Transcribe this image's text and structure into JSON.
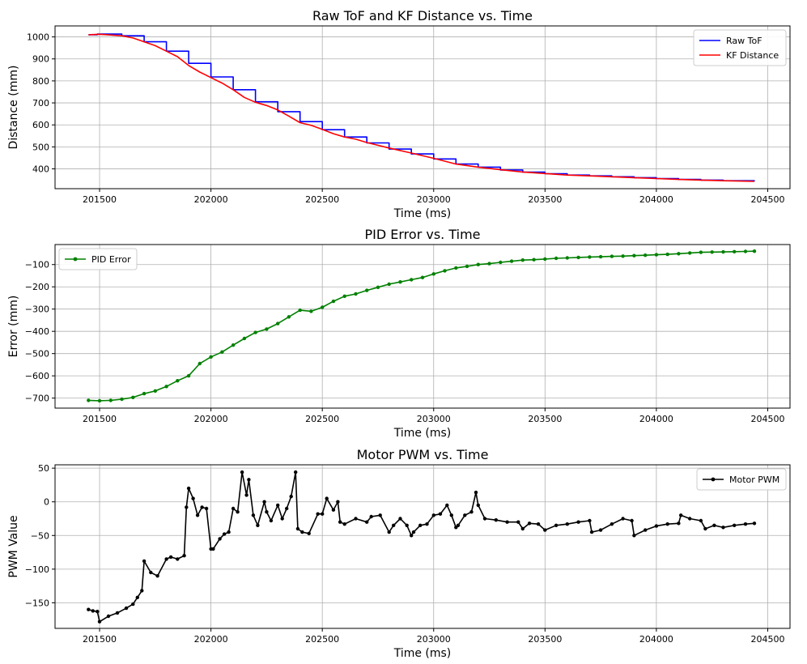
{
  "chart_data": [
    {
      "type": "line",
      "title": "Raw ToF and KF Distance vs. Time",
      "xlabel": "Time (ms)",
      "ylabel": "Distance (mm)",
      "xlim": [
        201300,
        204600
      ],
      "ylim": [
        310,
        1050
      ],
      "xticks": [
        201500,
        202000,
        202500,
        203000,
        203500,
        204000,
        204500
      ],
      "yticks": [
        400,
        500,
        600,
        700,
        800,
        900,
        1000
      ],
      "grid": true,
      "legend": "top-right",
      "series": [
        {
          "name": "Raw ToF",
          "color": "#0000ff",
          "style": "step",
          "marker": false,
          "x": [
            201450,
            201490,
            201600,
            201700,
            201800,
            201900,
            202000,
            202100,
            202200,
            202300,
            202400,
            202500,
            202600,
            202700,
            202800,
            202900,
            203000,
            203100,
            203200,
            203300,
            203400,
            203500,
            203600,
            203700,
            203800,
            203900,
            204000,
            204100,
            204200,
            204300,
            204440
          ],
          "y": [
            1010,
            1013,
            1005,
            978,
            935,
            880,
            818,
            760,
            705,
            660,
            615,
            578,
            545,
            518,
            490,
            468,
            445,
            422,
            408,
            395,
            385,
            378,
            372,
            368,
            364,
            360,
            356,
            352,
            349,
            346,
            344
          ]
        },
        {
          "name": "KF Distance",
          "color": "#ff0000",
          "style": "line",
          "marker": false,
          "x": [
            201450,
            201500,
            201600,
            201650,
            201700,
            201750,
            201800,
            201850,
            201900,
            201950,
            202000,
            202050,
            202100,
            202150,
            202200,
            202250,
            202300,
            202350,
            202400,
            202450,
            202500,
            202550,
            202600,
            202650,
            202700,
            202800,
            202900,
            203000,
            203100,
            203200,
            203300,
            203400,
            203500,
            203600,
            203700,
            203800,
            203900,
            204000,
            204100,
            204200,
            204300,
            204440
          ],
          "y": [
            1010,
            1012,
            1005,
            995,
            978,
            960,
            935,
            910,
            870,
            840,
            815,
            790,
            760,
            725,
            703,
            688,
            668,
            640,
            610,
            598,
            580,
            560,
            545,
            535,
            520,
            495,
            472,
            448,
            422,
            408,
            396,
            386,
            379,
            372,
            368,
            364,
            360,
            356,
            352,
            349,
            346,
            343
          ]
        }
      ]
    },
    {
      "type": "line",
      "title": "PID Error vs. Time",
      "xlabel": "Time (ms)",
      "ylabel": "Error (mm)",
      "xlim": [
        201300,
        204600
      ],
      "ylim": [
        -745,
        -10
      ],
      "xticks": [
        201500,
        202000,
        202500,
        203000,
        203500,
        204000,
        204500
      ],
      "yticks": [
        -700,
        -600,
        -500,
        -400,
        -300,
        -200,
        -100
      ],
      "grid": true,
      "legend": "top-left",
      "series": [
        {
          "name": "PID Error",
          "color": "#008000",
          "style": "line",
          "marker": true,
          "x": [
            201450,
            201500,
            201550,
            201600,
            201650,
            201700,
            201750,
            201800,
            201850,
            201900,
            201950,
            202000,
            202050,
            202100,
            202150,
            202200,
            202250,
            202300,
            202350,
            202400,
            202450,
            202500,
            202550,
            202600,
            202650,
            202700,
            202750,
            202800,
            202850,
            202900,
            202950,
            203000,
            203050,
            203100,
            203150,
            203200,
            203250,
            203300,
            203350,
            203400,
            203450,
            203500,
            203550,
            203600,
            203650,
            203700,
            203750,
            203800,
            203850,
            203900,
            203950,
            204000,
            204050,
            204100,
            204150,
            204200,
            204250,
            204300,
            204350,
            204400,
            204440
          ],
          "y": [
            -710,
            -712,
            -710,
            -705,
            -697,
            -680,
            -668,
            -648,
            -622,
            -600,
            -545,
            -515,
            -493,
            -462,
            -432,
            -405,
            -390,
            -365,
            -335,
            -305,
            -310,
            -292,
            -265,
            -242,
            -232,
            -216,
            -202,
            -188,
            -178,
            -168,
            -158,
            -142,
            -128,
            -115,
            -108,
            -100,
            -96,
            -90,
            -85,
            -80,
            -78,
            -75,
            -72,
            -70,
            -68,
            -66,
            -65,
            -63,
            -62,
            -60,
            -58,
            -56,
            -54,
            -51,
            -48,
            -45,
            -44,
            -43,
            -42,
            -41,
            -40
          ]
        }
      ]
    },
    {
      "type": "line",
      "title": "Motor PWM vs. Time",
      "xlabel": "Time (ms)",
      "ylabel": "PWM Value",
      "xlim": [
        201300,
        204600
      ],
      "ylim": [
        -188,
        55
      ],
      "xticks": [
        201500,
        202000,
        202500,
        203000,
        203500,
        204000,
        204500
      ],
      "yticks": [
        -150,
        -100,
        -50,
        0,
        50
      ],
      "grid": true,
      "legend": "top-right",
      "series": [
        {
          "name": "Motor PWM",
          "color": "#000000",
          "style": "line",
          "marker": true,
          "x": [
            201450,
            201470,
            201490,
            201500,
            201540,
            201580,
            201620,
            201650,
            201670,
            201690,
            201700,
            201730,
            201760,
            201800,
            201820,
            201850,
            201880,
            201890,
            201900,
            201920,
            201940,
            201960,
            201980,
            202000,
            202010,
            202040,
            202060,
            202080,
            202100,
            202120,
            202140,
            202160,
            202170,
            202190,
            202210,
            202240,
            202250,
            202270,
            202300,
            202320,
            202340,
            202360,
            202380,
            202390,
            202410,
            202440,
            202480,
            202500,
            202520,
            202550,
            202570,
            202580,
            202600,
            202650,
            202700,
            202720,
            202760,
            202800,
            202820,
            202850,
            202880,
            202900,
            202910,
            202940,
            202970,
            203000,
            203030,
            203060,
            203080,
            203100,
            203110,
            203140,
            203170,
            203190,
            203200,
            203230,
            203280,
            203330,
            203380,
            203400,
            203430,
            203470,
            203500,
            203550,
            203600,
            203650,
            203700,
            203710,
            203750,
            203800,
            203850,
            203890,
            203900,
            203950,
            204000,
            204050,
            204100,
            204110,
            204150,
            204200,
            204220,
            204260,
            204300,
            204350,
            204400,
            204440
          ],
          "y": [
            -160,
            -162,
            -163,
            -178,
            -170,
            -165,
            -158,
            -152,
            -142,
            -132,
            -88,
            -105,
            -110,
            -85,
            -82,
            -85,
            -80,
            -8,
            20,
            5,
            -20,
            -8,
            -10,
            -70,
            -70,
            -55,
            -48,
            -45,
            -10,
            -15,
            44,
            10,
            33,
            -20,
            -35,
            0,
            -15,
            -28,
            -5,
            -25,
            -10,
            8,
            44,
            -40,
            -45,
            -47,
            -18,
            -18,
            5,
            -12,
            0,
            -30,
            -33,
            -25,
            -30,
            -22,
            -20,
            -45,
            -35,
            -25,
            -35,
            -50,
            -45,
            -35,
            -33,
            -20,
            -18,
            -5,
            -20,
            -38,
            -35,
            -20,
            -15,
            14,
            -5,
            -25,
            -27,
            -30,
            -30,
            -40,
            -32,
            -33,
            -42,
            -35,
            -33,
            -30,
            -28,
            -45,
            -42,
            -33,
            -25,
            -28,
            -50,
            -42,
            -36,
            -33,
            -32,
            -20,
            -25,
            -28,
            -40,
            -35,
            -38,
            -35,
            -33,
            -32
          ]
        }
      ]
    }
  ]
}
